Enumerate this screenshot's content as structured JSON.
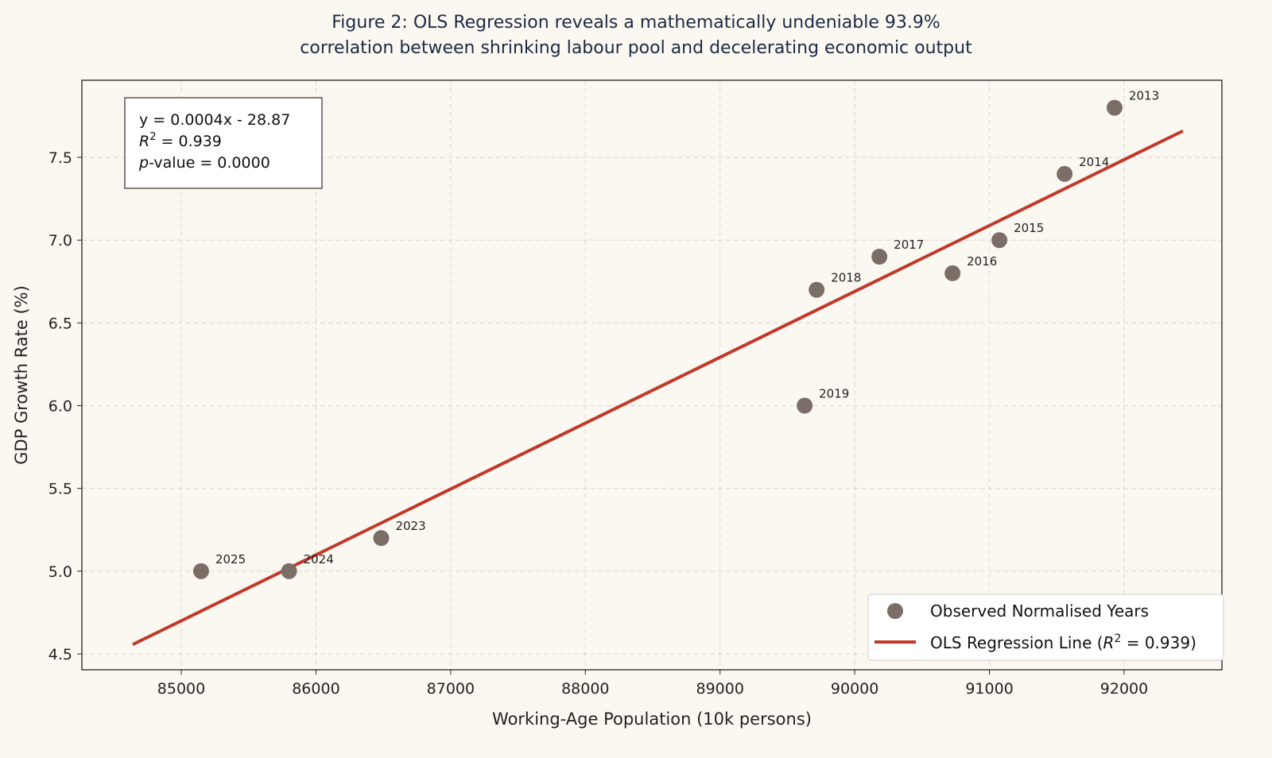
{
  "chart_data": {
    "type": "scatter",
    "title_lines": [
      "Figure 2: OLS Regression reveals a mathematically undeniable 93.9%",
      "correlation between shrinking labour pool and decelerating economic output"
    ],
    "xlabel": "Working-Age Population (10k persons)",
    "ylabel": "GDP Growth Rate (%)",
    "xlim": [
      84262,
      92726
    ],
    "ylim": [
      4.404,
      7.966
    ],
    "xticks": [
      85000,
      86000,
      87000,
      88000,
      89000,
      90000,
      91000,
      92000
    ],
    "yticks": [
      "4.5",
      "5.0",
      "5.5",
      "6.0",
      "6.5",
      "7.0",
      "7.5"
    ],
    "grid": true,
    "series": [
      {
        "name": "Observed Normalised Years",
        "kind": "scatter",
        "color": "#7a6e66",
        "points": [
          {
            "label": "2013",
            "x": 91929,
            "y": 7.8
          },
          {
            "label": "2014",
            "x": 91558,
            "y": 7.4
          },
          {
            "label": "2015",
            "x": 91074,
            "y": 7.0
          },
          {
            "label": "2016",
            "x": 90726,
            "y": 6.8
          },
          {
            "label": "2017",
            "x": 90183,
            "y": 6.9
          },
          {
            "label": "2018",
            "x": 89717,
            "y": 6.7
          },
          {
            "label": "2019",
            "x": 89628,
            "y": 6.0
          },
          {
            "label": "2023",
            "x": 86484,
            "y": 5.2
          },
          {
            "label": "2024",
            "x": 85800,
            "y": 5.0
          },
          {
            "label": "2025",
            "x": 85147,
            "y": 5.0
          }
        ]
      },
      {
        "name_prefix": "OLS Regression Line (",
        "name_r": "R",
        "name_sup": "2",
        "name_suffix": " = 0.939)",
        "kind": "line",
        "color": "#c0392b",
        "x": [
          84640,
          92437
        ],
        "y": [
          4.557,
          7.66
        ]
      }
    ],
    "stats_box": {
      "equation": "y = 0.0004x - 28.87",
      "r2_symbol": "R",
      "r2_sup": "2",
      "r2_value": " = 0.939",
      "p_symbol": "p",
      "p_value": "-value = 0.0000"
    },
    "legend_placement": "bottom-right"
  }
}
